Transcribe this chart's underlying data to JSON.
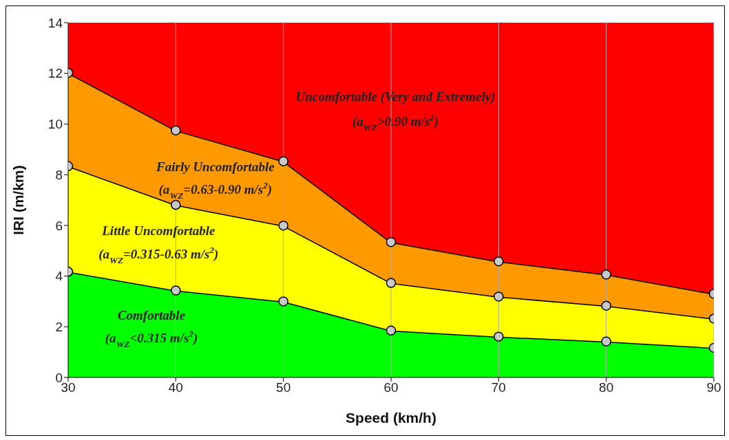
{
  "chart_data": {
    "type": "area",
    "stacked": true,
    "xlabel": "Speed (km/h)",
    "ylabel": "IRI (m/km)",
    "x": [
      30,
      40,
      50,
      60,
      70,
      80,
      90
    ],
    "series": [
      {
        "color": "#00ff00",
        "values": [
          4.17,
          3.43,
          3.0,
          1.85,
          1.61,
          1.42,
          1.17
        ]
      },
      {
        "color": "#ffff00",
        "values": [
          4.17,
          3.38,
          2.99,
          1.88,
          1.58,
          1.41,
          1.15
        ]
      },
      {
        "color": "#ff9900",
        "values": [
          3.68,
          2.94,
          2.54,
          1.61,
          1.39,
          1.23,
          0.98
        ]
      },
      {
        "color": "#ff0000",
        "marker": "none",
        "values": [
          1.98,
          4.25,
          5.47,
          8.66,
          9.42,
          9.94,
          10.7
        ]
      }
    ],
    "annotations": [
      "Uncomfortable (Very and Extremely)",
      "(a$_{WZ}$>0.90 m/s$^{2}$)",
      "Fairly Uncomfortable",
      "(a$_{WZ}$=0.63-0.90 m/s$^{2}$)",
      "Little Uncomfortable",
      "(a$_{WZ}$=0.315-0.63 m/s$^{2}$)",
      "Comfortable",
      "(a$_{WZ}$<0.315 m/s$^{2}$)"
    ],
    "xlim": [
      30,
      90
    ],
    "xticks": [
      30,
      40,
      50,
      60,
      70,
      80,
      90
    ],
    "ylim": [
      0,
      14
    ],
    "yticks": [
      0,
      2,
      4,
      6,
      8,
      10,
      12,
      14
    ],
    "grid": "x",
    "marker": "circle",
    "line_style": "solid",
    "legend": false
  }
}
